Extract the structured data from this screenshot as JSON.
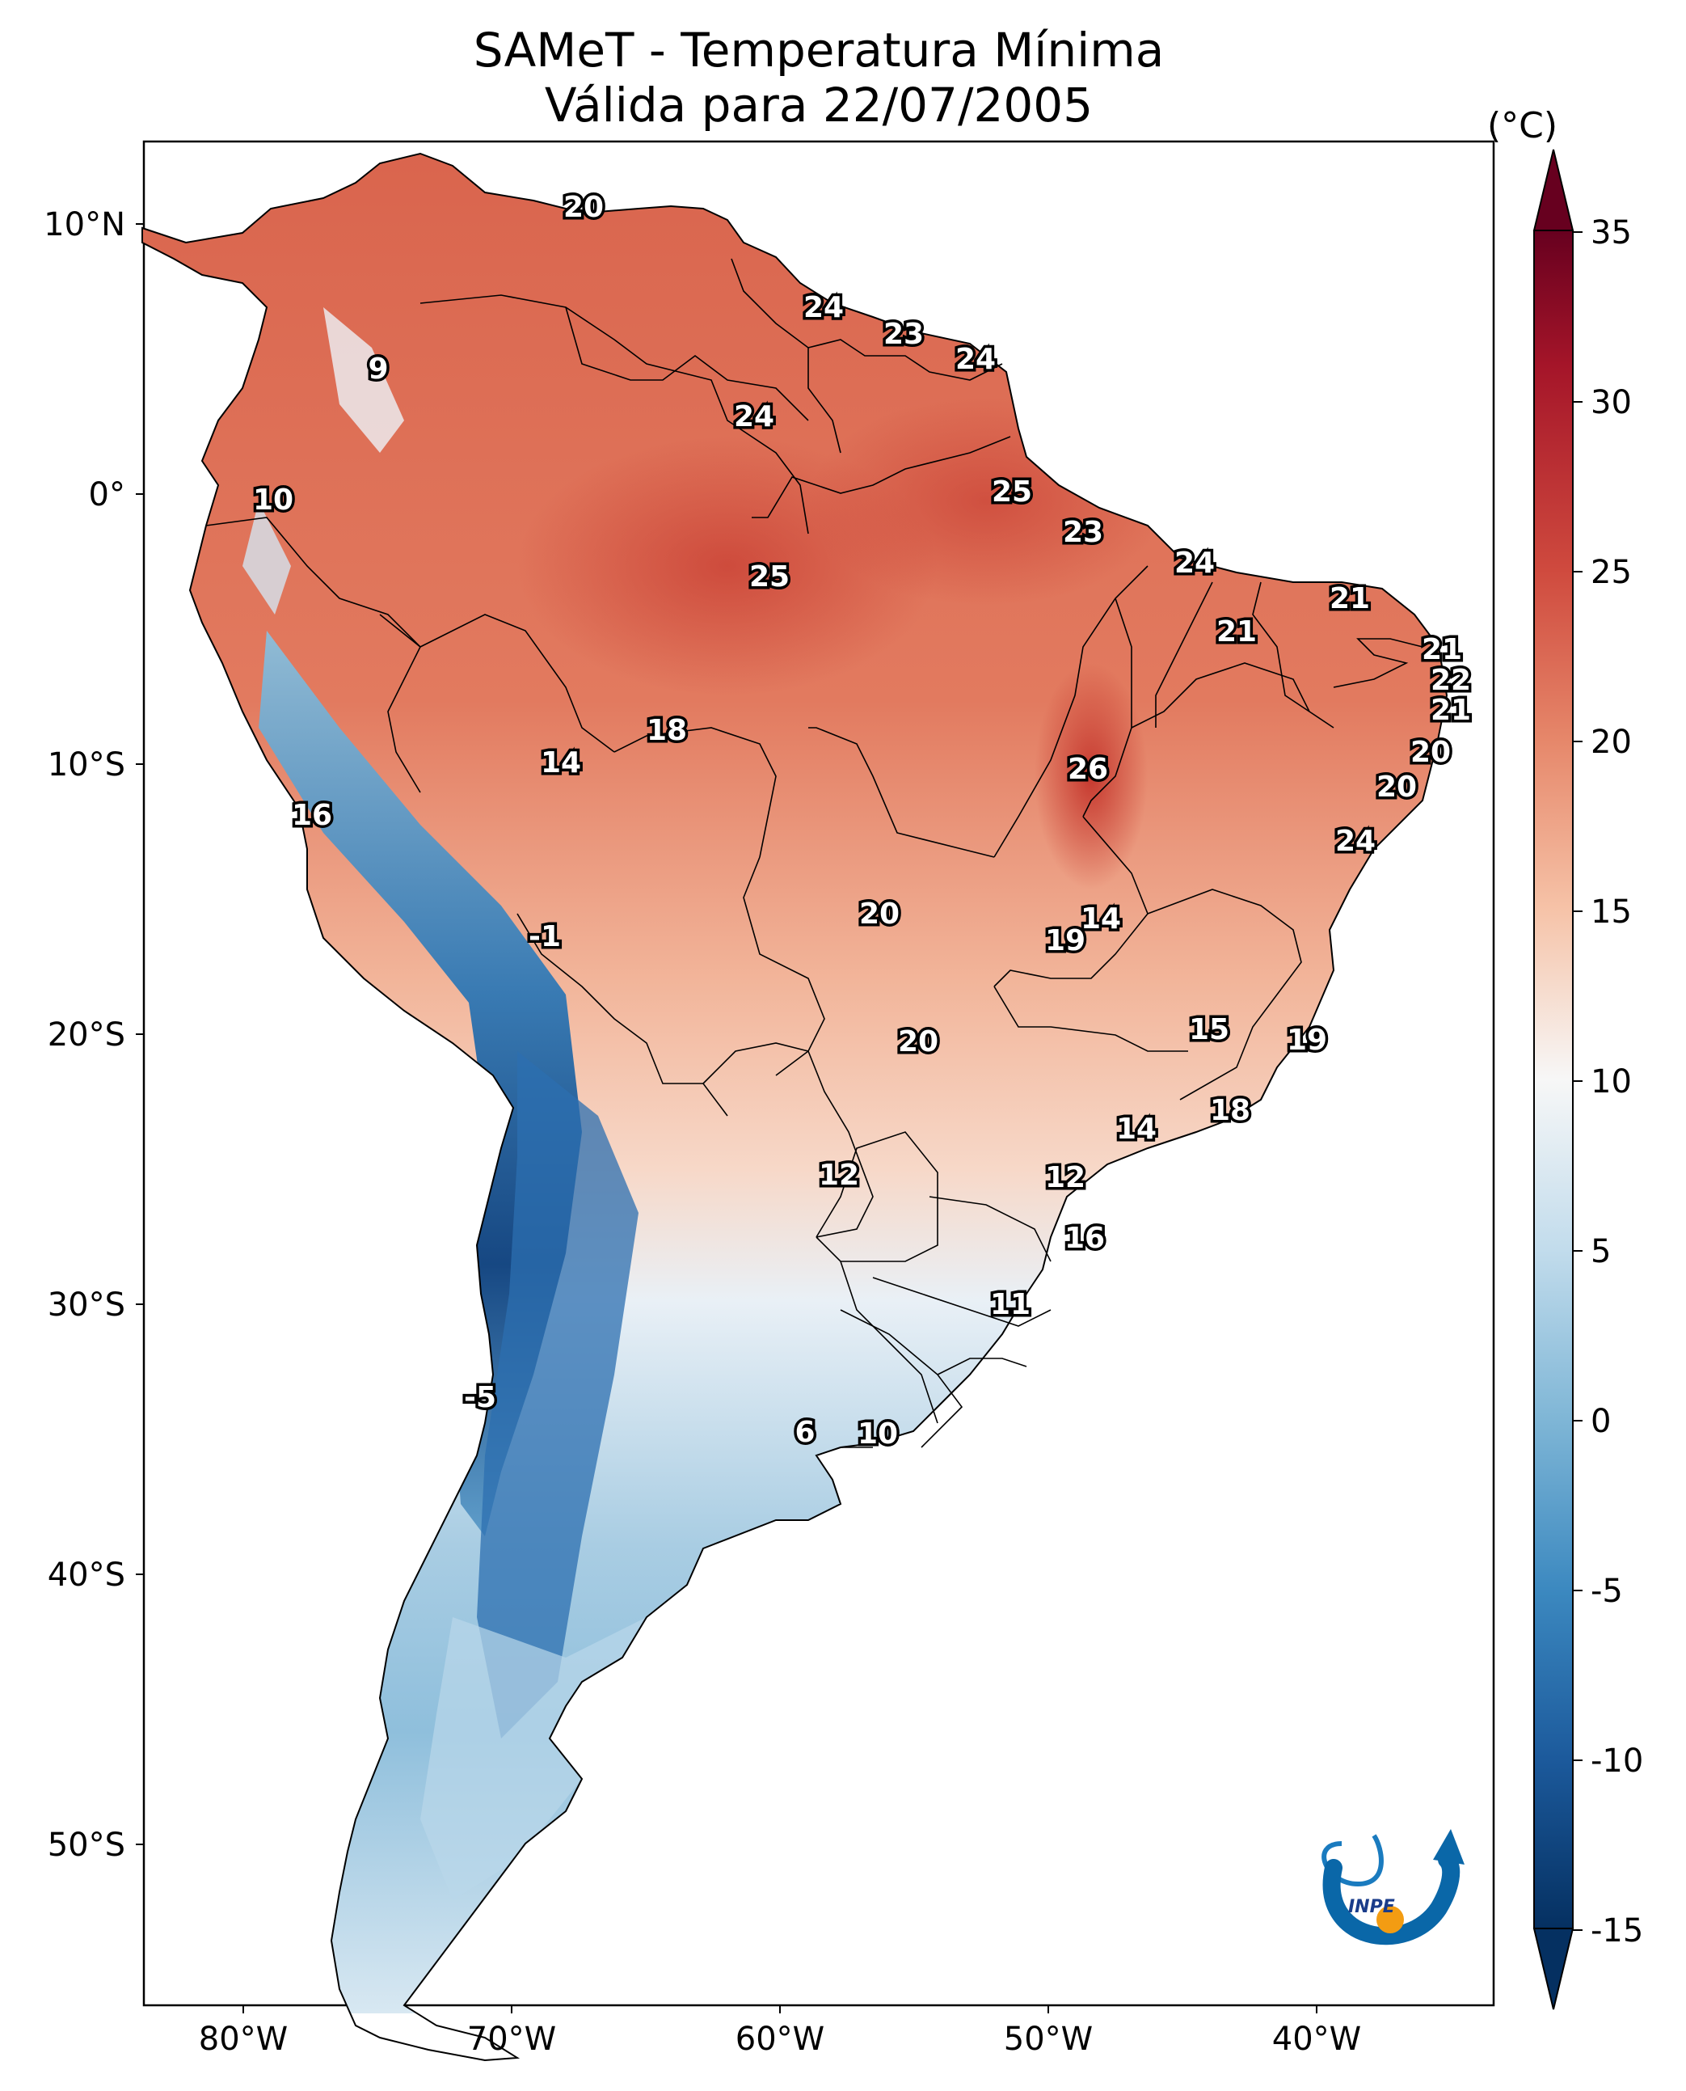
{
  "title_line1": "SAMeT - Temperatura Mínima",
  "title_line2": "Válida para 22/07/2005",
  "colorbar": {
    "unit": "(°C)",
    "ticks": [
      "35",
      "30",
      "25",
      "20",
      "15",
      "10",
      "5",
      "0",
      "-5",
      "-10",
      "-15"
    ],
    "min": -15,
    "max": 35,
    "colors": {
      "cold": "#053061",
      "mid": "#f7f7f7",
      "warm": "#67001f"
    }
  },
  "axes": {
    "lat_labels": [
      "10°N",
      "0°",
      "10°S",
      "20°S",
      "30°S",
      "40°S",
      "50°S"
    ],
    "lon_labels": [
      "80°W",
      "70°W",
      "60°W",
      "50°W",
      "40°W"
    ]
  },
  "station_values": [
    "20",
    "24",
    "23",
    "24",
    "9",
    "24",
    "10",
    "25",
    "23",
    "24",
    "25",
    "21",
    "21",
    "21",
    "22",
    "21",
    "20",
    "18",
    "14",
    "26",
    "20",
    "16",
    "24",
    "14",
    "-1",
    "20",
    "19",
    "19",
    "15",
    "20",
    "18",
    "14",
    "12",
    "12",
    "16",
    "11",
    "-5",
    "6",
    "10"
  ],
  "logo_text": "INPE"
}
